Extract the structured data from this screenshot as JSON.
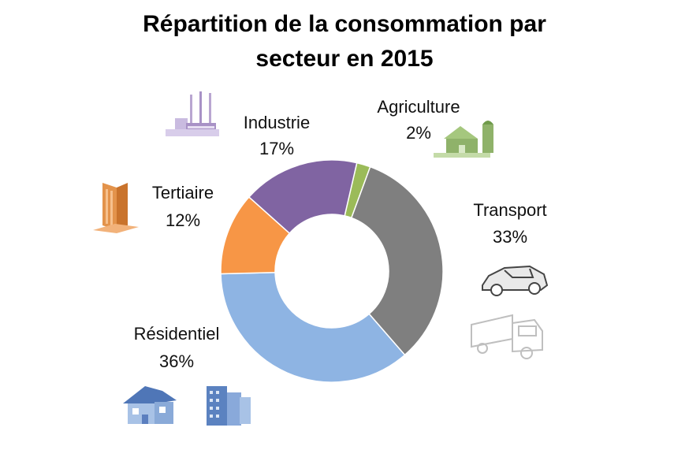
{
  "chart_data": {
    "type": "donut",
    "title_lines": [
      "Répartition de la consommation par",
      "secteur en 2015"
    ],
    "start_angle_deg": 13,
    "slices": [
      {
        "name": "Agriculture",
        "value": 2,
        "label": "2%",
        "color": "#9BBB59"
      },
      {
        "name": "Transport",
        "value": 33,
        "label": "33%",
        "color": "#7F7F7F"
      },
      {
        "name": "Résidentiel",
        "value": 36,
        "label": "36%",
        "color": "#8EB4E3"
      },
      {
        "name": "Tertiaire",
        "value": 12,
        "label": "12%",
        "color": "#F79646"
      },
      {
        "name": "Industrie",
        "value": 17,
        "label": "17%",
        "color": "#8064A2"
      }
    ]
  },
  "icons": {
    "industrie": "factory-icon",
    "agriculture": "farm-icon",
    "tertiaire": "office-tower-icon",
    "transport": [
      "car-icon",
      "truck-icon"
    ],
    "residentiel": [
      "house-icon",
      "apartment-building-icon"
    ]
  }
}
